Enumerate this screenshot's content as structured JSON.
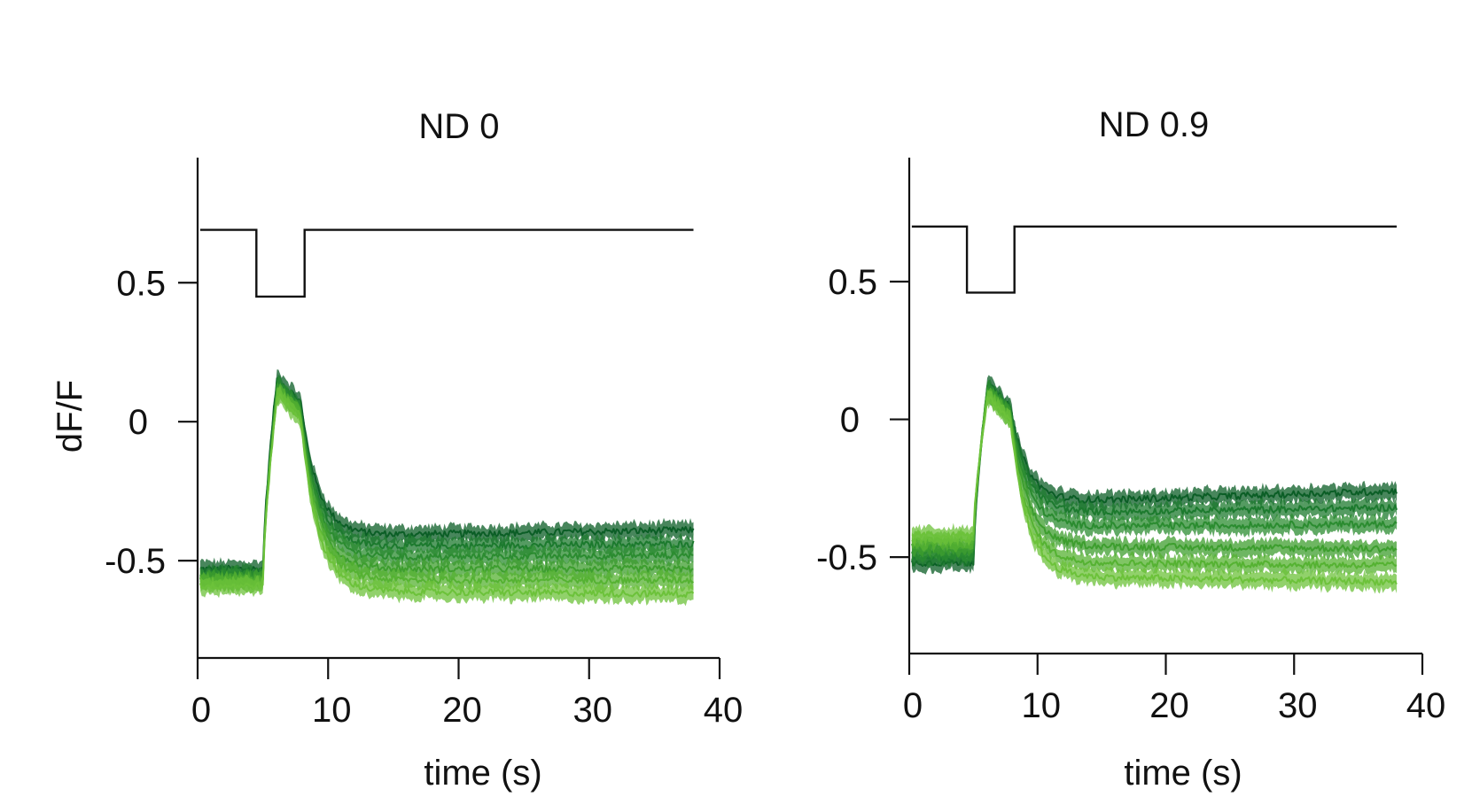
{
  "chart_data": [
    {
      "type": "line",
      "title": "ND 0",
      "xlabel": "time (s)",
      "ylabel": "dF/F",
      "xlim": [
        0,
        40
      ],
      "ylim": [
        -0.85,
        0.95
      ],
      "xticks": [
        0,
        10,
        20,
        30,
        40
      ],
      "xtick_labels": [
        "0",
        "10",
        "20",
        "30",
        "40"
      ],
      "yticks": [
        -0.5,
        0,
        0.5
      ],
      "ytick_labels": [
        "-0.5",
        "0",
        "0.5"
      ],
      "grid": false,
      "stimulus": {
        "high": 0.69,
        "low": 0.45,
        "off_at": 4.5,
        "on_at": 8.2,
        "end": 38
      },
      "series": [
        {
          "color": "#0b5e26",
          "baseline": -0.53,
          "peak": 0.16,
          "plateau": -0.41,
          "drift": 0.02
        },
        {
          "color": "#1c7a2e",
          "baseline": -0.55,
          "peak": 0.14,
          "plateau": -0.45,
          "drift": 0.01
        },
        {
          "color": "#2b8c30",
          "baseline": -0.56,
          "peak": 0.13,
          "plateau": -0.49,
          "drift": 0.01
        },
        {
          "color": "#3d9e2e",
          "baseline": -0.57,
          "peak": 0.12,
          "plateau": -0.53,
          "drift": 0.0
        },
        {
          "color": "#55b232",
          "baseline": -0.58,
          "peak": 0.11,
          "plateau": -0.57,
          "drift": 0.0
        },
        {
          "color": "#6cc23a",
          "baseline": -0.59,
          "peak": 0.1,
          "plateau": -0.61,
          "drift": -0.01
        }
      ]
    },
    {
      "type": "line",
      "title": "ND 0.9",
      "xlabel": "time (s)",
      "ylabel": "",
      "xlim": [
        0,
        40
      ],
      "ylim": [
        -0.85,
        0.95
      ],
      "xticks": [
        0,
        10,
        20,
        30,
        40
      ],
      "xtick_labels": [
        "0",
        "10",
        "20",
        "30",
        "40"
      ],
      "yticks": [
        -0.5,
        0,
        0.5
      ],
      "ytick_labels": [
        "-0.5",
        "0",
        "0.5"
      ],
      "grid": false,
      "stimulus": {
        "high": 0.7,
        "low": 0.46,
        "off_at": 4.5,
        "on_at": 8.2,
        "end": 38
      },
      "series": [
        {
          "color": "#0b5e26",
          "baseline": -0.52,
          "peak": 0.13,
          "plateau": -0.3,
          "drift": 0.04
        },
        {
          "color": "#1c7a2e",
          "baseline": -0.5,
          "peak": 0.12,
          "plateau": -0.34,
          "drift": 0.02
        },
        {
          "color": "#2b8c30",
          "baseline": -0.48,
          "peak": 0.11,
          "plateau": -0.39,
          "drift": 0.01
        },
        {
          "color": "#3d9e2e",
          "baseline": -0.46,
          "peak": 0.1,
          "plateau": -0.46,
          "drift": -0.01
        },
        {
          "color": "#55b232",
          "baseline": -0.44,
          "peak": 0.09,
          "plateau": -0.52,
          "drift": -0.01
        },
        {
          "color": "#6cc23a",
          "baseline": -0.42,
          "peak": 0.08,
          "plateau": -0.57,
          "drift": -0.02
        }
      ]
    }
  ]
}
